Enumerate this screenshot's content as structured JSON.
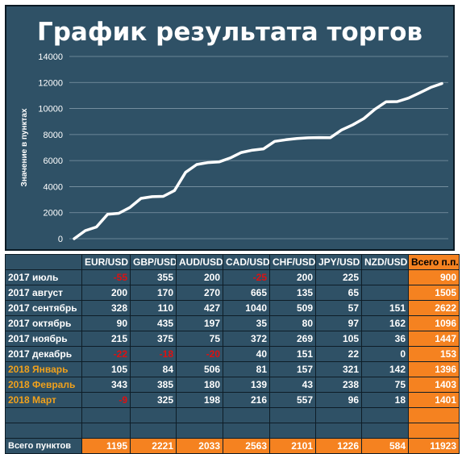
{
  "chart_data": {
    "type": "line",
    "title": "График результата торгов",
    "ylabel": "Значение в пунктах",
    "ylim": [
      0,
      14000
    ],
    "yticks": [
      0,
      2000,
      4000,
      6000,
      8000,
      10000,
      12000,
      14000
    ],
    "grid": true,
    "series": [
      {
        "values": [
          0,
          620,
          900,
          1880,
          1950,
          2400,
          3100,
          3230,
          3250,
          3700,
          5100,
          5700,
          5850,
          5900,
          6200,
          6620,
          6800,
          6900,
          7480,
          7600,
          7700,
          7750,
          7770,
          7760,
          8350,
          8750,
          9230,
          9950,
          10520,
          10530,
          10800,
          11200,
          11620,
          11920
        ]
      }
    ],
    "line_color": "#ffffff"
  },
  "table": {
    "headers": [
      "",
      "EUR/USD",
      "GBP/USD",
      "AUD/USD",
      "CAD/USD",
      "CHF/USD",
      "JPY/USD",
      "NZD/USD",
      "Всего п.п."
    ],
    "rows": [
      {
        "label": "2017 июль",
        "cells": [
          "-55",
          "355",
          "200",
          "-25",
          "200",
          "225",
          ""
        ],
        "total": "900",
        "gold": false
      },
      {
        "label": "2017 август",
        "cells": [
          "200",
          "170",
          "270",
          "665",
          "135",
          "65",
          ""
        ],
        "total": "1505",
        "gold": false
      },
      {
        "label": "2017 сентябрь",
        "cells": [
          "328",
          "110",
          "427",
          "1040",
          "509",
          "57",
          "151"
        ],
        "total": "2622",
        "gold": false
      },
      {
        "label": "2017 октябрь",
        "cells": [
          "90",
          "435",
          "197",
          "35",
          "80",
          "97",
          "162"
        ],
        "total": "1096",
        "gold": false
      },
      {
        "label": "2017 ноябрь",
        "cells": [
          "215",
          "375",
          "75",
          "372",
          "269",
          "105",
          "36"
        ],
        "total": "1447",
        "gold": false
      },
      {
        "label": "2017 декабрь",
        "cells": [
          "-22",
          "-18",
          "-20",
          "40",
          "151",
          "22",
          "0"
        ],
        "total": "153",
        "gold": false
      },
      {
        "label": "2018 Январь",
        "cells": [
          "105",
          "84",
          "506",
          "81",
          "157",
          "321",
          "142"
        ],
        "total": "1396",
        "gold": true
      },
      {
        "label": "2018 Февраль",
        "cells": [
          "343",
          "385",
          "180",
          "139",
          "43",
          "238",
          "75"
        ],
        "total": "1403",
        "gold": true
      },
      {
        "label": "2018 Март",
        "cells": [
          "-9",
          "325",
          "198",
          "216",
          "557",
          "96",
          "18"
        ],
        "total": "1401",
        "gold": true
      }
    ],
    "sum_label": "Всего пунктов",
    "sums": [
      "1195",
      "2221",
      "2033",
      "2563",
      "2101",
      "1226",
      "584"
    ],
    "sum_total": "11923"
  }
}
